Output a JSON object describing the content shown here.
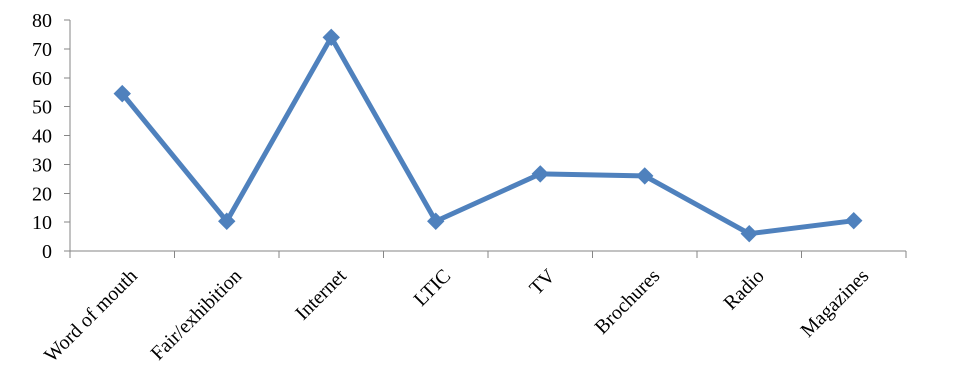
{
  "chart_data": {
    "type": "line",
    "title": "",
    "xlabel": "",
    "ylabel": "",
    "categories": [
      "Word of mouth",
      "Fair/exhibition",
      "Internet",
      "LTIC",
      "TV",
      "Brochures",
      "Radio",
      "Magazines"
    ],
    "series": [
      {
        "values": [
          54.5,
          10.3,
          74,
          10.3,
          26.7,
          26,
          6,
          10.5
        ],
        "color": "#4f81bd",
        "marker": "diamond"
      }
    ],
    "ylim": [
      0,
      80
    ],
    "yticks": [
      0,
      10,
      20,
      30,
      40,
      50,
      60,
      70,
      80
    ],
    "grid": false,
    "legend": "none"
  }
}
